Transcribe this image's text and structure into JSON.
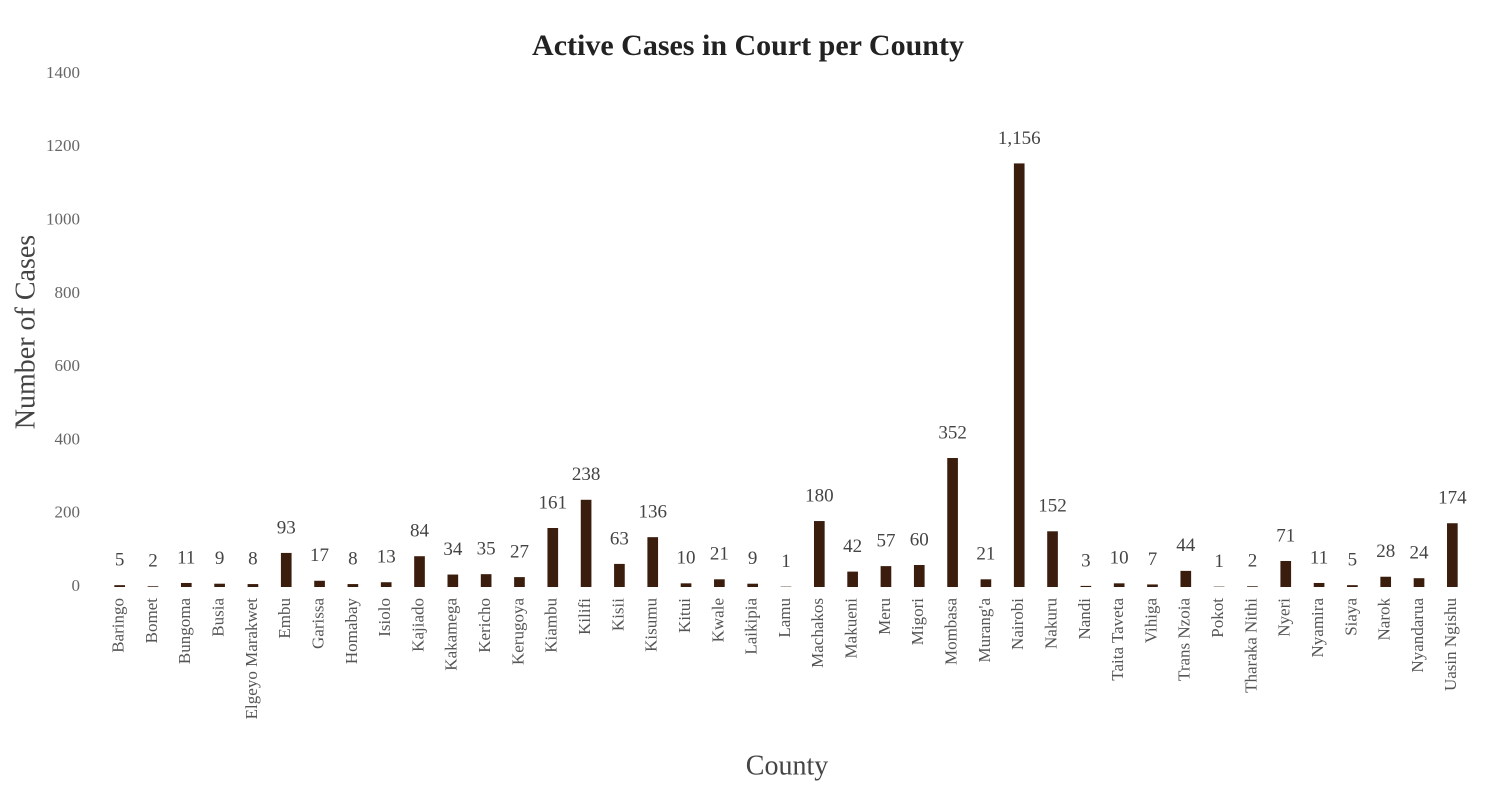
{
  "chart_data": {
    "type": "bar",
    "title": "Active Cases in Court per County",
    "x_label": "County",
    "y_label": "Number of Cases",
    "categories": [
      "Baringo",
      "Bomet",
      "Bungoma",
      "Busia",
      "Elgeyo Marakwet",
      "Embu",
      "Garissa",
      "Homabay",
      "Isiolo",
      "Kajiado",
      "Kakamega",
      "Kericho",
      "Kerugoya",
      "Kiambu",
      "Kilifi",
      "Kisii",
      "Kisumu",
      "Kitui",
      "Kwale",
      "Laikipia",
      "Lamu",
      "Machakos",
      "Makueni",
      "Meru",
      "Migori",
      "Mombasa",
      "Murang'a",
      "Nairobi",
      "Nakuru",
      "Nandi",
      "Taita Taveta",
      "Vihiga",
      "Trans Nzoia",
      "Pokot",
      "Tharaka Nithi",
      "Nyeri",
      "Nyamira",
      "Siaya",
      "Narok",
      "Nyandarua",
      "Uasin Ngishu"
    ],
    "values": [
      5,
      2,
      11,
      9,
      8,
      93,
      17,
      8,
      13,
      84,
      34,
      35,
      27,
      161,
      238,
      63,
      136,
      10,
      21,
      9,
      1,
      180,
      42,
      57,
      60,
      352,
      21,
      1156,
      152,
      3,
      10,
      7,
      44,
      1,
      2,
      71,
      11,
      5,
      28,
      24,
      174
    ],
    "value_labels": [
      "5",
      "2",
      "11",
      "9",
      "8",
      "93",
      "17",
      "8",
      "13",
      "84",
      "34",
      "35",
      "27",
      "161",
      "238",
      "63",
      "136",
      "10",
      "21",
      "9",
      "1",
      "180",
      "42",
      "57",
      "60",
      "352",
      "21",
      "1,156",
      "152",
      "3",
      "10",
      "7",
      "44",
      "1",
      "2",
      "71",
      "11",
      "5",
      "28",
      "24",
      "174"
    ],
    "color": "#3b1d0e",
    "ylim": [
      0,
      1400
    ],
    "yticks": [
      0,
      200,
      400,
      600,
      800,
      1000,
      1200,
      1400
    ],
    "grid": false
  }
}
